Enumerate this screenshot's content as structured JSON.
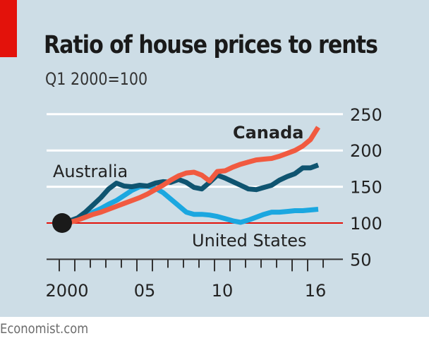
{
  "header": {
    "title": "Ratio of house prices to rents",
    "subtitle": "Q1 2000=100"
  },
  "footer": {
    "source": "Economist.com"
  },
  "colors": {
    "background": "#cddde6",
    "accent_bar": "#e3120b",
    "canada": "#f15a40",
    "australia": "#0f5470",
    "united_states": "#1ba7e0",
    "baseline": "#e3120b",
    "gridline": "#ffffff"
  },
  "chart_data": {
    "type": "line",
    "title": "Ratio of house prices to rents",
    "subtitle": "Q1 2000=100",
    "xlabel": "",
    "ylabel": "",
    "xlim": [
      2000,
      2016.75
    ],
    "ylim": [
      50,
      250
    ],
    "grid": true,
    "y_axis_side": "right",
    "yticks": [
      50,
      100,
      150,
      200,
      250
    ],
    "ytick_labels": [
      "50",
      "100",
      "150",
      "200",
      "250"
    ],
    "xtick_labels": [
      {
        "year": 2000,
        "label": "2000"
      },
      {
        "year": 2005,
        "label": "05"
      },
      {
        "year": 2010,
        "label": "10"
      },
      {
        "year": 2016,
        "label": "16"
      }
    ],
    "baseline": 100,
    "start_marker": {
      "x": 2000.0,
      "y": 100
    },
    "series": [
      {
        "name": "Canada",
        "label_style": "bold",
        "x": [
          2000.0,
          2000.5,
          2001.0,
          2001.5,
          2002.0,
          2002.5,
          2003.0,
          2003.5,
          2004.0,
          2004.5,
          2005.0,
          2005.5,
          2006.0,
          2006.5,
          2007.0,
          2007.5,
          2008.0,
          2008.5,
          2009.0,
          2009.5,
          2010.0,
          2010.5,
          2011.0,
          2011.5,
          2012.0,
          2012.5,
          2013.0,
          2013.5,
          2014.0,
          2014.5,
          2015.0,
          2015.5,
          2016.0,
          2016.5
        ],
        "y": [
          100,
          101,
          104,
          108,
          112,
          115,
          119,
          123,
          127,
          131,
          135,
          140,
          146,
          152,
          159,
          165,
          169,
          170,
          166,
          158,
          171,
          172,
          177,
          181,
          184,
          187,
          188,
          189,
          192,
          196,
          200,
          206,
          215,
          232
        ]
      },
      {
        "name": "Australia",
        "label_style": "normal",
        "x": [
          2000.0,
          2000.5,
          2001.0,
          2001.5,
          2002.0,
          2002.5,
          2003.0,
          2003.5,
          2004.0,
          2004.5,
          2005.0,
          2005.5,
          2006.0,
          2006.5,
          2007.0,
          2007.5,
          2008.0,
          2008.5,
          2009.0,
          2009.5,
          2010.0,
          2010.5,
          2011.0,
          2011.5,
          2012.0,
          2012.5,
          2013.0,
          2013.5,
          2014.0,
          2014.5,
          2015.0,
          2015.5,
          2016.0,
          2016.5
        ],
        "y": [
          100,
          103,
          107,
          115,
          125,
          135,
          147,
          155,
          151,
          150,
          152,
          151,
          155,
          157,
          156,
          160,
          156,
          149,
          147,
          156,
          166,
          162,
          157,
          152,
          147,
          146,
          149,
          152,
          159,
          164,
          168,
          176,
          176,
          180
        ]
      },
      {
        "name": "United States",
        "label_style": "normal",
        "x": [
          2000.0,
          2000.5,
          2001.0,
          2001.5,
          2002.0,
          2002.5,
          2003.0,
          2003.5,
          2004.0,
          2004.5,
          2005.0,
          2005.5,
          2006.0,
          2006.5,
          2007.0,
          2007.5,
          2008.0,
          2008.5,
          2009.0,
          2009.5,
          2010.0,
          2010.5,
          2011.0,
          2011.5,
          2012.0,
          2012.5,
          2013.0,
          2013.5,
          2014.0,
          2014.5,
          2015.0,
          2015.5,
          2016.0,
          2016.5
        ],
        "y": [
          100,
          102,
          106,
          110,
          115,
          120,
          126,
          131,
          138,
          145,
          150,
          151,
          148,
          142,
          133,
          124,
          115,
          112,
          112,
          111,
          109,
          106,
          103,
          101,
          104,
          108,
          112,
          115,
          115,
          116,
          117,
          117,
          118,
          119
        ]
      }
    ],
    "annotations": [
      {
        "text": "Canada",
        "series": "Canada"
      },
      {
        "text": "Australia",
        "series": "Australia"
      },
      {
        "text": "United States",
        "series": "United States"
      }
    ]
  }
}
